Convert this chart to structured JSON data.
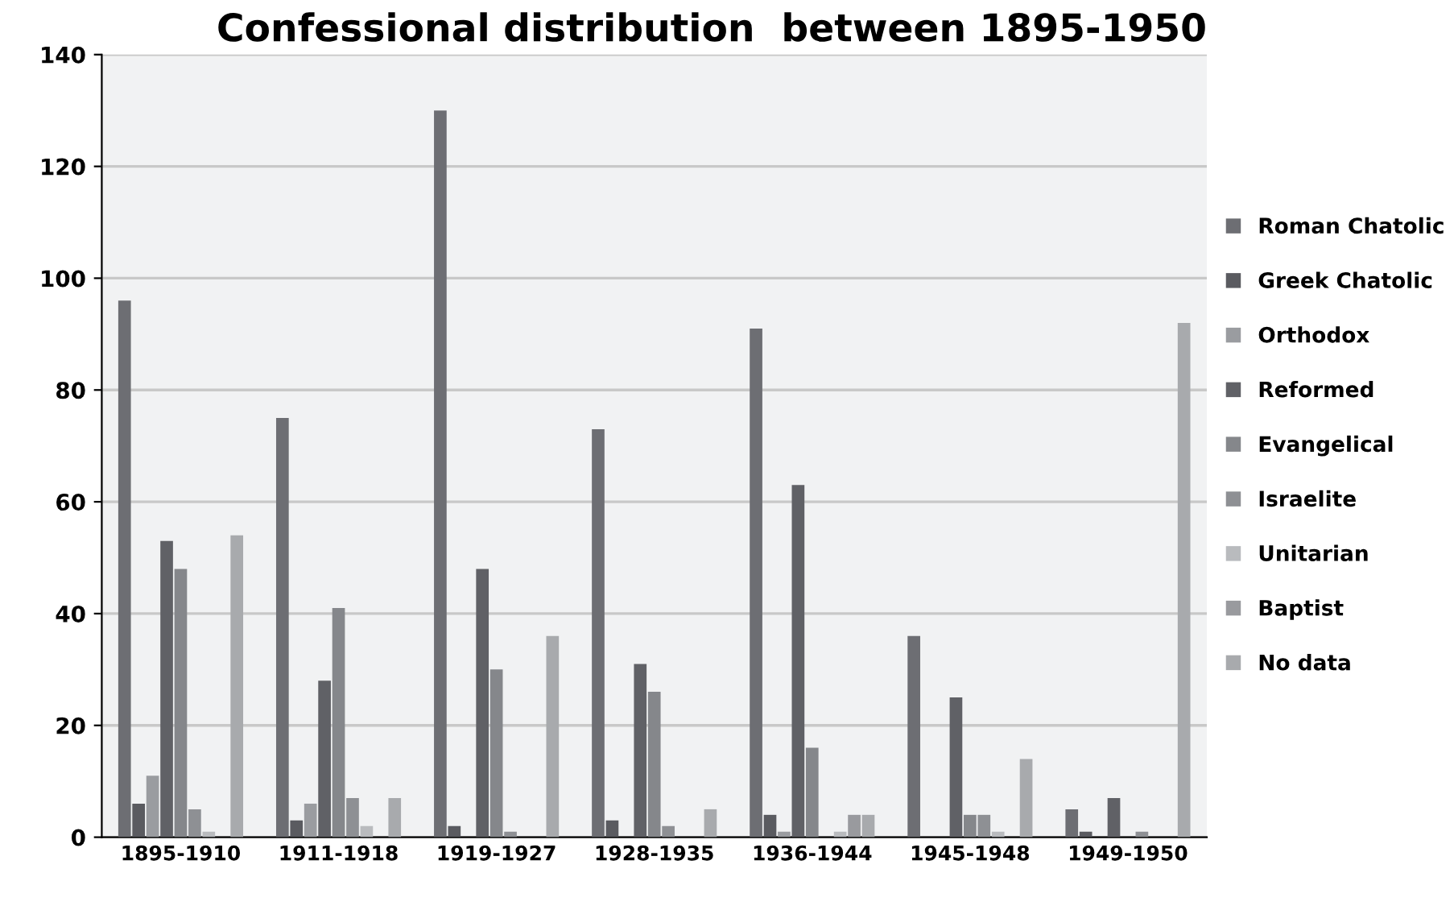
{
  "chart_data": {
    "type": "bar",
    "title": "Confessional distribution  between 1895-1950",
    "categories": [
      "1895-1910",
      "1911-1918",
      "1919-1927",
      "1928-1935",
      "1936-1944",
      "1945-1948",
      "1949-1950"
    ],
    "series": [
      {
        "name": "Roman Chatolic",
        "color": "#6d6e73",
        "values": [
          96,
          75,
          130,
          73,
          91,
          36,
          5
        ]
      },
      {
        "name": "Greek Chatolic",
        "color": "#5a5b60",
        "values": [
          6,
          3,
          2,
          3,
          4,
          0,
          1
        ]
      },
      {
        "name": "Orthodox",
        "color": "#9a9ca0",
        "values": [
          11,
          6,
          0,
          0,
          1,
          0,
          0
        ]
      },
      {
        "name": "Reformed",
        "color": "#606166",
        "values": [
          53,
          28,
          48,
          31,
          63,
          25,
          7
        ]
      },
      {
        "name": "Evangelical",
        "color": "#85878b",
        "values": [
          48,
          41,
          30,
          26,
          16,
          4,
          0
        ]
      },
      {
        "name": "Israelite",
        "color": "#8e9094",
        "values": [
          5,
          7,
          1,
          2,
          0,
          4,
          1
        ]
      },
      {
        "name": "Unitarian",
        "color": "#b9bbbe",
        "values": [
          1,
          2,
          0,
          0,
          1,
          1,
          0
        ]
      },
      {
        "name": "Baptist",
        "color": "#999a9e",
        "values": [
          0,
          0,
          0,
          0,
          4,
          0,
          0
        ]
      },
      {
        "name": "No data",
        "color": "#a8aaad",
        "values": [
          54,
          7,
          36,
          5,
          4,
          14,
          92
        ]
      }
    ],
    "ylim": [
      0,
      140
    ],
    "yticks": [
      0,
      20,
      40,
      60,
      80,
      100,
      120,
      140
    ],
    "grid": "y",
    "legend": "right"
  }
}
